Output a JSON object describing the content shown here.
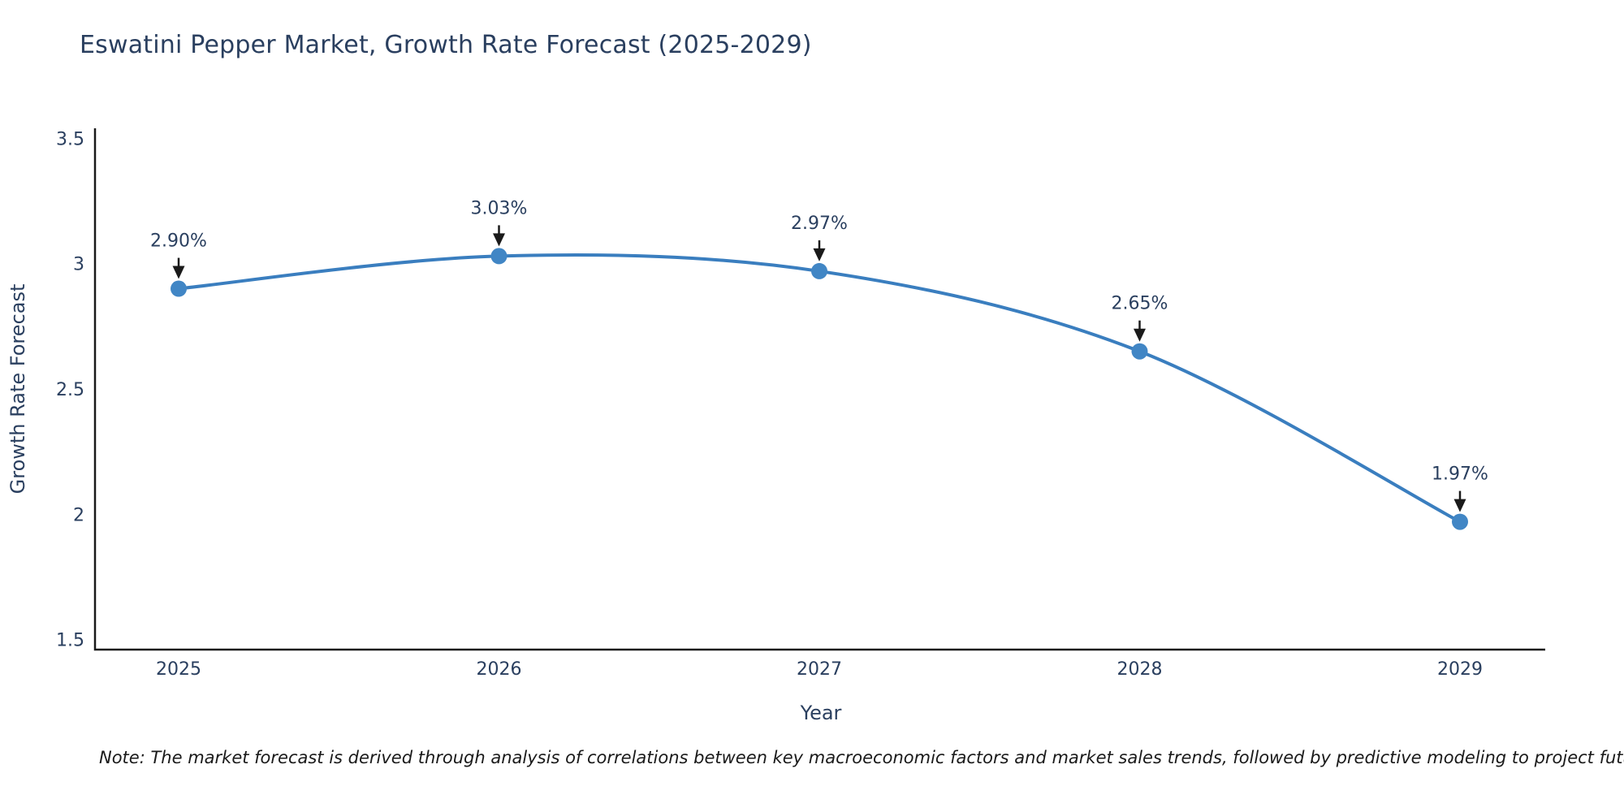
{
  "chart_data": {
    "type": "line",
    "title": "Eswatini Pepper Market, Growth Rate Forecast (2025-2029)",
    "xlabel": "Year",
    "ylabel": "Growth Rate Forecast",
    "categories": [
      "2025",
      "2026",
      "2027",
      "2028",
      "2029"
    ],
    "values": [
      2.9,
      3.03,
      2.97,
      2.65,
      1.97
    ],
    "point_labels": [
      "2.90%",
      "3.03%",
      "2.97%",
      "2.65%",
      "1.97%"
    ],
    "yticks": [
      1.5,
      2,
      2.5,
      3,
      3.5
    ],
    "ytick_labels": [
      "1.5",
      "2",
      "2.5",
      "3",
      "3.5"
    ],
    "ylim": [
      1.46,
      3.54
    ],
    "grid": false,
    "legend": "none",
    "line_shape": "spline",
    "line_color": "#3a7ebf",
    "marker_color": "#4186c5",
    "axis_color": "#1a1a1a",
    "text_color": "#2a3f5f",
    "annotation_arrow_color": "#1a1a1a"
  },
  "note": {
    "text": "Note: The market forecast is derived through analysis of correlations between key macroeconomic factors and market sales trends, followed by predictive modeling to project future sales"
  }
}
